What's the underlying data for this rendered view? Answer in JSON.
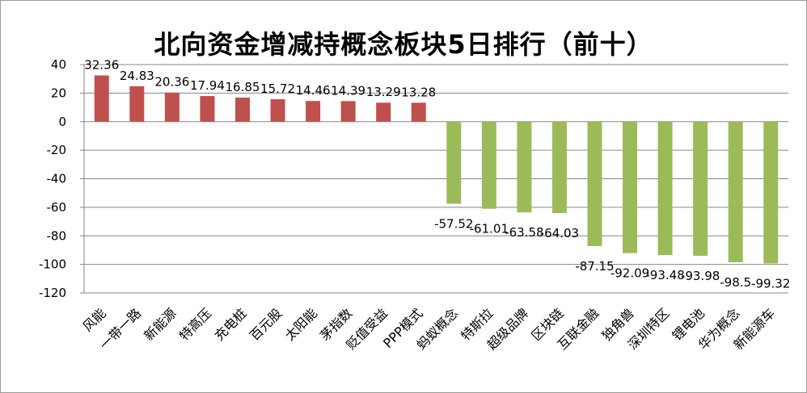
{
  "chart_data": {
    "type": "bar",
    "title": "北向资金增减持概念板块5日排行（前十）",
    "categories": [
      "风能",
      "一带一路",
      "新能源",
      "特高压",
      "充电桩",
      "百元股",
      "太阳能",
      "茅指数",
      "贬值受益",
      "PPP模式",
      "蚂蚁概念",
      "特斯拉",
      "超级品牌",
      "区块链",
      "互联金融",
      "独角兽",
      "深圳特区",
      "锂电池",
      "华为概念",
      "新能源车"
    ],
    "values": [
      32.36,
      24.83,
      20.36,
      17.94,
      16.85,
      15.72,
      14.46,
      14.39,
      13.29,
      13.28,
      -57.52,
      -61.01,
      -63.58,
      -64.03,
      -87.15,
      -92.09,
      -93.48,
      -93.98,
      -98.5,
      -99.32
    ],
    "value_labels": [
      "32.36",
      "24.83",
      "20.36",
      "17.94",
      "16.85",
      "15.72",
      "14.46",
      "14.39",
      "13.29",
      "13.28",
      "-57.52",
      "-61.01",
      "-63.58",
      "-64.03",
      "-87.15",
      "-92.09",
      "-93.48",
      "-93.98",
      "-98.5",
      "-99.32"
    ],
    "ylim": [
      -120,
      40
    ],
    "yticks": [
      40,
      20,
      0,
      -20,
      -40,
      -60,
      -80,
      -100,
      -120
    ],
    "xlabel": "",
    "ylabel": "",
    "grid": true,
    "legend": "none",
    "colors": {
      "positive": "#c0504d",
      "negative": "#9bbb59",
      "grid": "#868686"
    }
  }
}
